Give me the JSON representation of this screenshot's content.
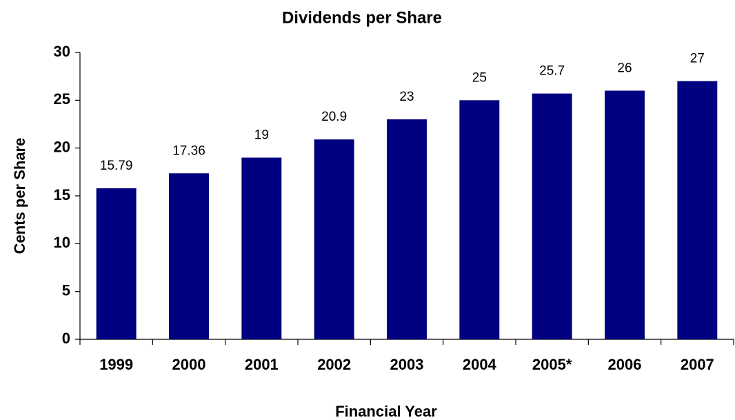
{
  "chart_data": {
    "type": "bar",
    "title": "Dividends per Share",
    "x_label": "Financial Year",
    "y_label": "Cents per Share",
    "categories": [
      "1999",
      "2000",
      "2001",
      "2002",
      "2003",
      "2004",
      "2005*",
      "2006",
      "2007"
    ],
    "values": [
      15.79,
      17.36,
      19,
      20.9,
      23,
      25,
      25.7,
      26,
      27
    ],
    "color": "#000080",
    "ylim": [
      0,
      30
    ],
    "yticks": [
      0,
      5,
      10,
      15,
      20,
      25,
      30
    ],
    "grid": false
  }
}
